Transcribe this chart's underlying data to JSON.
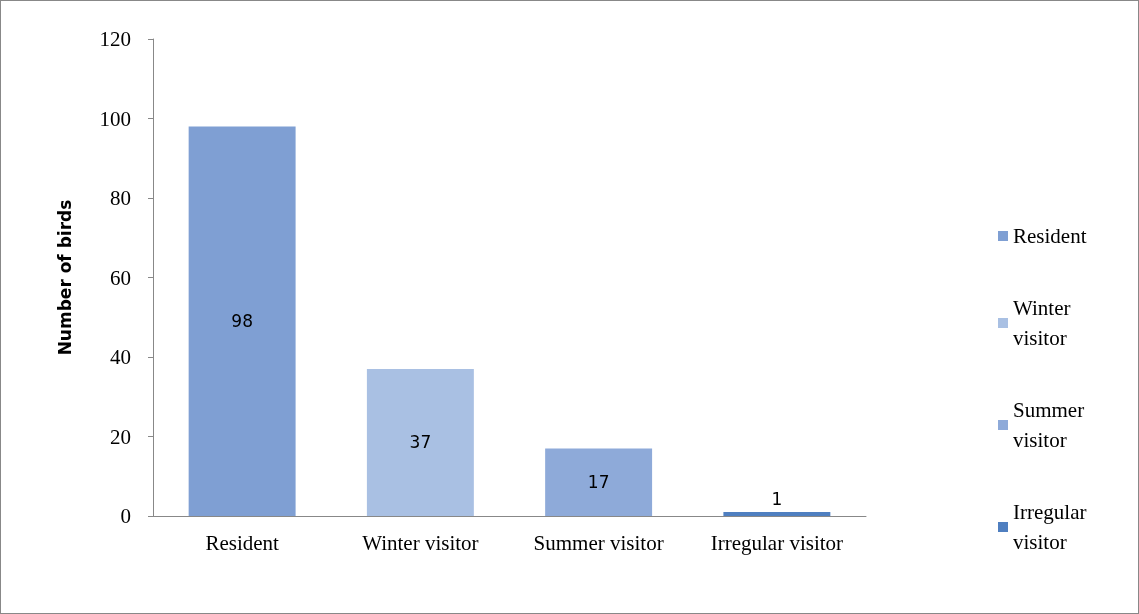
{
  "chart_data": {
    "type": "bar",
    "ylabel": "Number of birds",
    "categories": [
      "Resident",
      "Winter visitor",
      "Summer visitor",
      "Irregular visitor"
    ],
    "series": [
      {
        "name": "Resident",
        "color": "#7f9fd3",
        "values": [
          98,
          null,
          null,
          null
        ]
      },
      {
        "name": "Winter visitor",
        "color": "#a9c0e3",
        "values": [
          null,
          37,
          null,
          null
        ]
      },
      {
        "name": "Summer visitor",
        "color": "#8eaad9",
        "values": [
          null,
          null,
          17,
          null
        ]
      },
      {
        "name": "Irregular visitor",
        "color": "#4f7fc0",
        "values": [
          null,
          null,
          null,
          1
        ]
      }
    ],
    "stacked": true,
    "ylim": [
      0,
      120
    ],
    "yticks": [
      0,
      20,
      40,
      60,
      80,
      100,
      120
    ],
    "data_labels": true,
    "legend": "right",
    "grid": false
  }
}
